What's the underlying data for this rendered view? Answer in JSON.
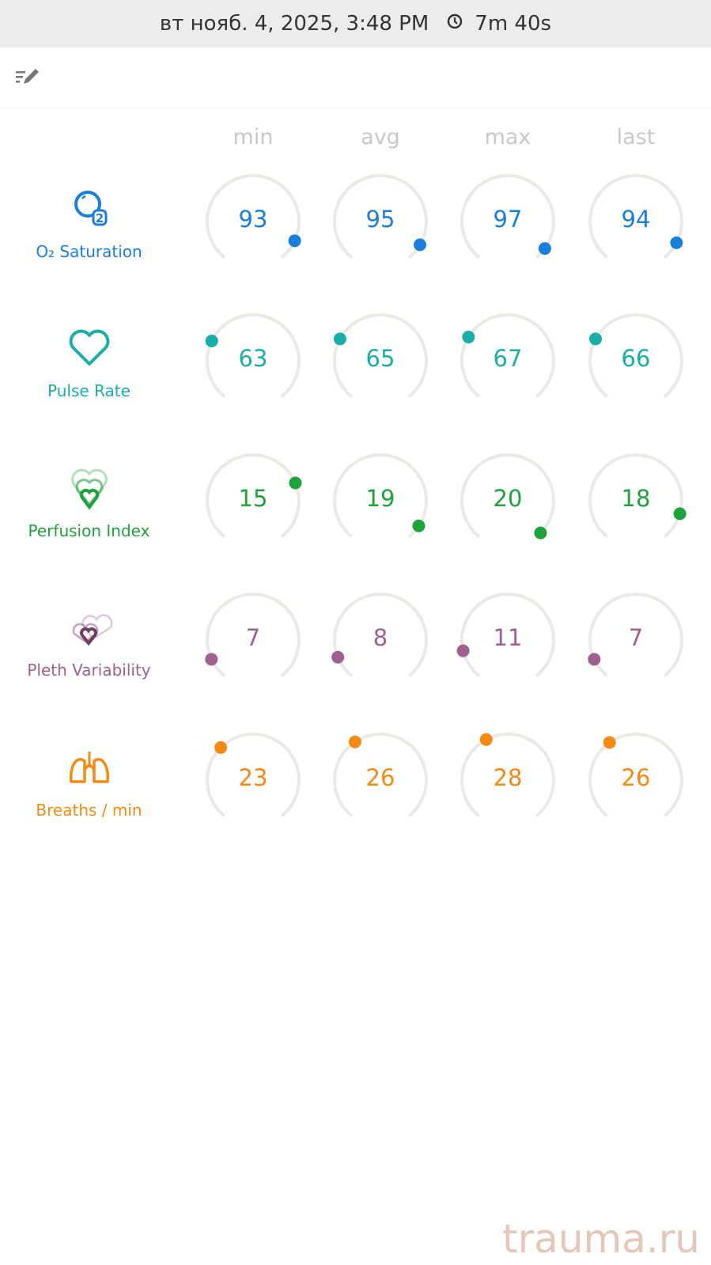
{
  "header": {
    "datetime": "вт нояб. 4, 2025, 3:48 PM",
    "duration": "7m 40s"
  },
  "columns": [
    "min",
    "avg",
    "max",
    "last"
  ],
  "metrics": [
    {
      "label": "O₂ Saturation",
      "icon": "o2-bubble-icon",
      "color": "#1a7fdc",
      "values": [
        "93",
        "95",
        "97",
        "94"
      ],
      "gauge_fraction": [
        0.91,
        0.93,
        0.95,
        0.92
      ]
    },
    {
      "label": "Pulse Rate",
      "icon": "heart-icon",
      "color": "#1aaea8",
      "values": [
        "63",
        "65",
        "67",
        "66"
      ],
      "gauge_fraction": [
        0.27,
        0.28,
        0.29,
        0.28
      ]
    },
    {
      "label": "Perfusion Index",
      "icon": "layered-hearts-icon",
      "color": "#1fa23c",
      "values": [
        "15",
        "19",
        "20",
        "18"
      ],
      "gauge_fraction": [
        0.74,
        0.94,
        0.98,
        0.88
      ]
    },
    {
      "label": "Pleth Variability",
      "icon": "pleth-hearts-icon",
      "color": "#a0608f",
      "values": [
        "7",
        "8",
        "11",
        "7"
      ],
      "gauge_fraction": [
        0.09,
        0.1,
        0.13,
        0.09
      ]
    },
    {
      "label": "Breaths / min",
      "icon": "lungs-icon",
      "color": "#f58a12",
      "values": [
        "23",
        "26",
        "28",
        "26"
      ],
      "gauge_fraction": [
        0.34,
        0.38,
        0.4,
        0.375
      ]
    }
  ],
  "watermark": "trauma.ru"
}
